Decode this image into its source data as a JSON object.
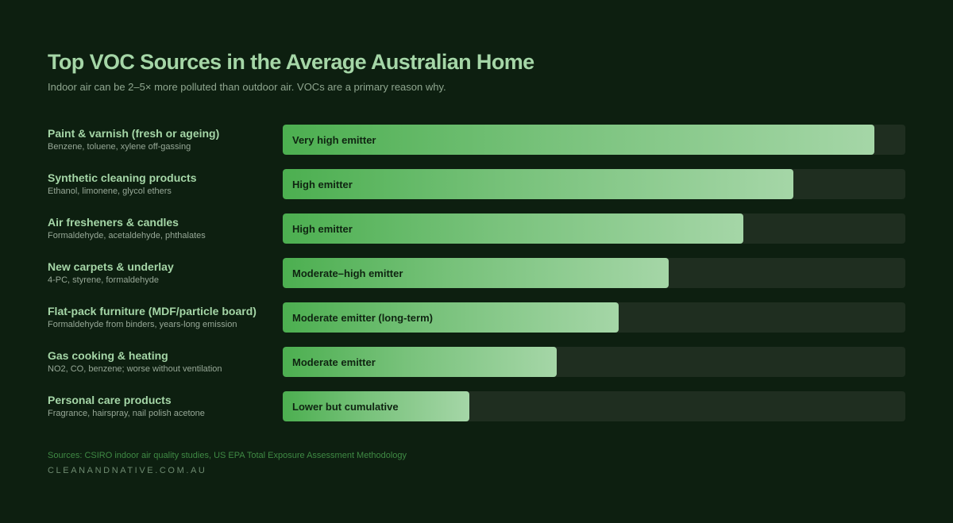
{
  "header": {
    "title": "Top VOC Sources in the Average Australian Home",
    "subtitle": "Indoor air can be 2–5× more polluted than outdoor air. VOCs are a primary reason why."
  },
  "colors": {
    "background": "#0d1f10",
    "title": "#a5d6a7",
    "track": "#1f2e20",
    "bar_gradient_start": "#4caf50",
    "bar_gradient_end": "#a5d6a7",
    "bar_text": "#0f2411",
    "sources_text": "#3f8a44"
  },
  "rows": [
    {
      "title": "Paint & varnish (fresh or ageing)",
      "detail": "Benzene, toluene, xylene off-gassing",
      "bar_label": "Very high emitter",
      "percent": 95
    },
    {
      "title": "Synthetic cleaning products",
      "detail": "Ethanol, limonene, glycol ethers",
      "bar_label": "High emitter",
      "percent": 82
    },
    {
      "title": "Air fresheners & candles",
      "detail": "Formaldehyde, acetaldehyde, phthalates",
      "bar_label": "High emitter",
      "percent": 74
    },
    {
      "title": "New carpets & underlay",
      "detail": "4-PC, styrene, formaldehyde",
      "bar_label": "Moderate–high emitter",
      "percent": 62
    },
    {
      "title": "Flat-pack furniture (MDF/particle board)",
      "detail": "Formaldehyde from binders, years-long emission",
      "bar_label": "Moderate emitter (long-term)",
      "percent": 54
    },
    {
      "title": "Gas cooking & heating",
      "detail": "NO2, CO, benzene; worse without ventilation",
      "bar_label": "Moderate emitter",
      "percent": 44
    },
    {
      "title": "Personal care products",
      "detail": "Fragrance, hairspray, nail polish acetone",
      "bar_label": "Lower but cumulative",
      "percent": 30
    }
  ],
  "footer": {
    "sources": "Sources: CSIRO indoor air quality studies, US EPA Total Exposure Assessment Methodology",
    "brand": "CLEANANDNATIVE.COM.AU"
  },
  "chart_data": {
    "type": "bar",
    "orientation": "horizontal",
    "title": "Top VOC Sources in the Average Australian Home",
    "subtitle": "Indoor air can be 2–5× more polluted than outdoor air. VOCs are a primary reason why.",
    "categories": [
      "Paint & varnish (fresh or ageing)",
      "Synthetic cleaning products",
      "Air fresheners & candles",
      "New carpets & underlay",
      "Flat-pack furniture (MDF/particle board)",
      "Gas cooking & heating",
      "Personal care products"
    ],
    "category_details": [
      "Benzene, toluene, xylene off-gassing",
      "Ethanol, limonene, glycol ethers",
      "Formaldehyde, acetaldehyde, phthalates",
      "4-PC, styrene, formaldehyde",
      "Formaldehyde from binders, years-long emission",
      "NO2, CO, benzene; worse without ventilation",
      "Fragrance, hairspray, nail polish acetone"
    ],
    "values": [
      95,
      82,
      74,
      62,
      54,
      44,
      30
    ],
    "data_labels": [
      "Very high emitter",
      "High emitter",
      "High emitter",
      "Moderate–high emitter",
      "Moderate emitter (long-term)",
      "Moderate emitter",
      "Lower but cumulative"
    ],
    "xlabel": "",
    "ylabel": "",
    "xlim": [
      0,
      100
    ],
    "grid": false,
    "legend": null,
    "annotations": [
      "Sources: CSIRO indoor air quality studies, US EPA Total Exposure Assessment Methodology",
      "CLEANANDNATIVE.COM.AU"
    ]
  }
}
